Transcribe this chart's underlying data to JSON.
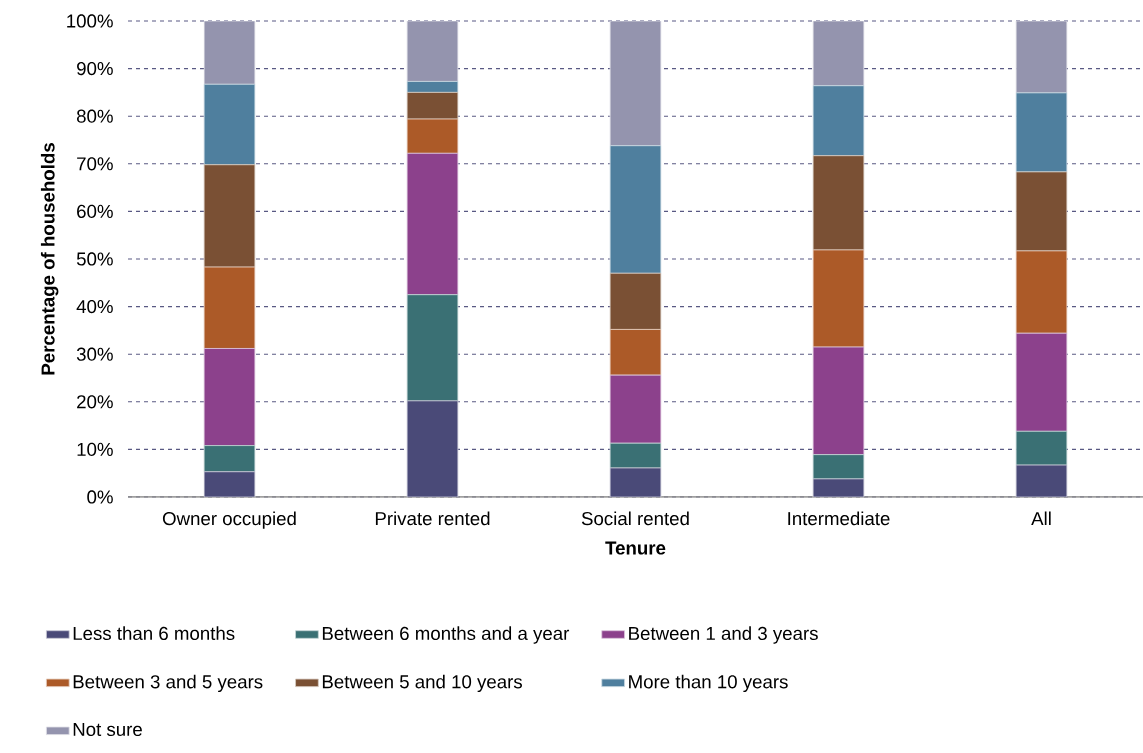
{
  "chart_data": {
    "type": "bar",
    "stacked": true,
    "xlabel": "Tenure",
    "ylabel": "Percentage of households",
    "categories": [
      "Owner occupied",
      "Private rented",
      "Social rented",
      "Intermediate",
      "All"
    ],
    "series": [
      {
        "name": "Less than 6 months",
        "color": "#4a4a78",
        "values": [
          5.3,
          20.2,
          6.1,
          3.8,
          6.7
        ]
      },
      {
        "name": "Between 6 months and a year",
        "color": "#3a7074",
        "values": [
          5.5,
          22.3,
          5.2,
          5.1,
          7.1
        ]
      },
      {
        "name": "Between 1 and 3 years",
        "color": "#8c418c",
        "values": [
          20.4,
          29.7,
          14.3,
          22.6,
          20.6
        ]
      },
      {
        "name": "Between 3 and 5 years",
        "color": "#ac5a28",
        "values": [
          17.1,
          7.2,
          9.6,
          20.4,
          17.3
        ]
      },
      {
        "name": "Between 5 and 10 years",
        "color": "#7a5034",
        "values": [
          21.5,
          5.6,
          11.8,
          19.8,
          16.6
        ]
      },
      {
        "name": "More than 10 years",
        "color": "#4f7f9e",
        "values": [
          16.9,
          2.3,
          26.8,
          14.7,
          16.6
        ]
      },
      {
        "name": "Not sure",
        "color": "#9494ae",
        "values": [
          13.3,
          12.7,
          26.2,
          13.6,
          15.1
        ]
      }
    ],
    "ylim": [
      0,
      100
    ],
    "yticks": [
      {
        "value": 0,
        "label": "0%"
      },
      {
        "value": 10,
        "label": "10%"
      },
      {
        "value": 20,
        "label": "20%"
      },
      {
        "value": 30,
        "label": "30%"
      },
      {
        "value": 40,
        "label": "40%"
      },
      {
        "value": 50,
        "label": "50%"
      },
      {
        "value": 60,
        "label": "60%"
      },
      {
        "value": 70,
        "label": "70%"
      },
      {
        "value": 80,
        "label": "80%"
      },
      {
        "value": 90,
        "label": "90%"
      },
      {
        "value": 100,
        "label": "100%"
      }
    ],
    "grid": "y",
    "legend": "bottom"
  }
}
